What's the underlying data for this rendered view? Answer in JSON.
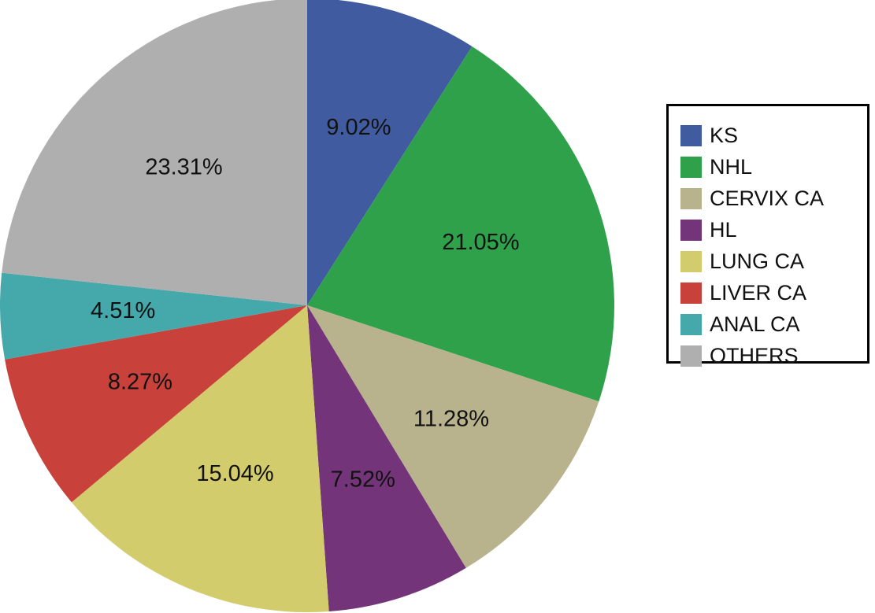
{
  "chart_data": {
    "type": "pie",
    "slices": [
      {
        "label": "KS",
        "value": 9.02,
        "value_label": "9.02%",
        "color": "#405b9f"
      },
      {
        "label": "NHL",
        "value": 21.05,
        "value_label": "21.05%",
        "color": "#2ea14a"
      },
      {
        "label": "CERVIX CA",
        "value": 11.28,
        "value_label": "11.28%",
        "color": "#b8b38d"
      },
      {
        "label": "HL",
        "value": 7.52,
        "value_label": "7.52%",
        "color": "#733479"
      },
      {
        "label": "LUNG CA",
        "value": 15.04,
        "value_label": "15.04%",
        "color": "#d2cc6c"
      },
      {
        "label": "LIVER CA",
        "value": 8.27,
        "value_label": "8.27%",
        "color": "#c9413b"
      },
      {
        "label": "ANAL CA",
        "value": 4.51,
        "value_label": "4.51%",
        "color": "#45a8ab"
      },
      {
        "label": "OTHERS",
        "value": 23.31,
        "value_label": "23.31%",
        "color": "#afafaf"
      }
    ],
    "start_angle": "12 o'clock",
    "direction": "clockwise",
    "legend_position": "right"
  }
}
